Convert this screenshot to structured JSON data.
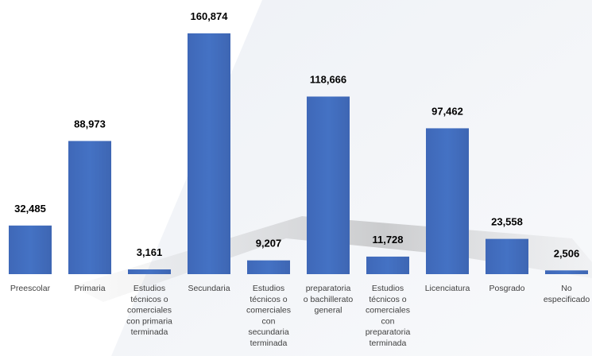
{
  "chart_data": {
    "type": "bar",
    "categories": [
      [
        "Preescolar"
      ],
      [
        "Primaria"
      ],
      [
        "Estudios",
        "técnicos o",
        "comerciales",
        "con primaria",
        "terminada"
      ],
      [
        "Secundaria"
      ],
      [
        "Estudios",
        "técnicos o",
        "comerciales",
        "con",
        "secundaria",
        "terminada"
      ],
      [
        "preparatoria",
        "o bachillerato",
        "general"
      ],
      [
        "Estudios",
        "técnicos o",
        "comerciales",
        "con",
        "preparatoria",
        "terminada"
      ],
      [
        "Licenciatura"
      ],
      [
        "Posgrado"
      ],
      [
        "No",
        "especificado"
      ]
    ],
    "values": [
      32485,
      88973,
      3161,
      160874,
      9207,
      118666,
      11728,
      97462,
      23558,
      2506
    ],
    "value_labels": [
      "32,485",
      "88,973",
      "3,161",
      "160,874",
      "9,207",
      "118,666",
      "11,728",
      "97,462",
      "23,558",
      "2,506"
    ],
    "ylim": [
      0,
      160874
    ],
    "grid": false,
    "legend": "none",
    "bar_color": "#4472C4",
    "background_watermark": "light gray diagonal shapes"
  }
}
